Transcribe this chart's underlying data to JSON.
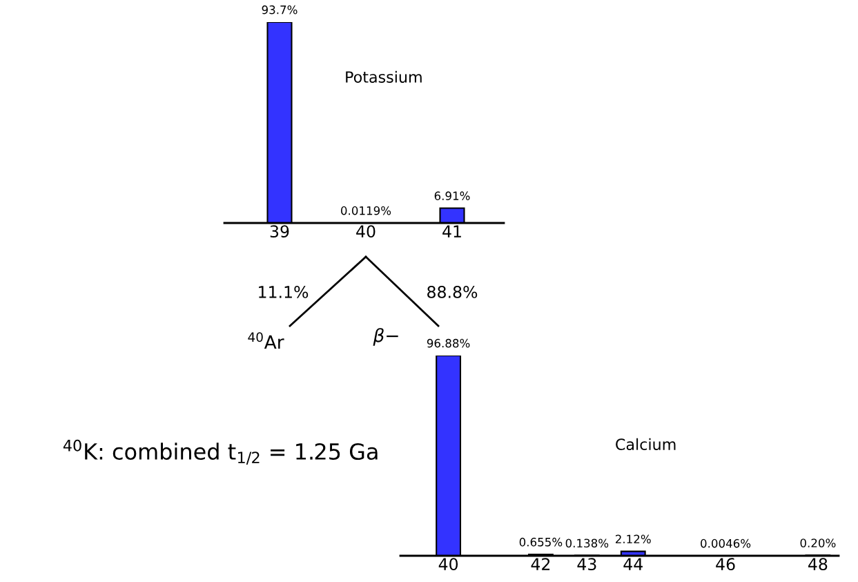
{
  "chart_data": [
    {
      "type": "bar",
      "title": "Potassium",
      "x": [
        39,
        40,
        41
      ],
      "xlim": [
        38.36,
        41.6
      ],
      "xticks": [
        39,
        40,
        41
      ],
      "tick_labels": "x",
      "color": "#3333ff",
      "values": [
        93.7,
        0.0119,
        6.91
      ],
      "value_labels": [
        "93.7%",
        "0.0119%",
        "6.91%"
      ],
      "annotations": [
        "11.1%",
        "88.8%",
        "β−",
        "$^{40}$Ar",
        "$^{40}$K: combined t$_{1/2}$ = 1.25 Ga"
      ]
    },
    {
      "type": "bar",
      "title": "Calcium",
      "x": [
        40,
        42,
        43,
        44,
        46,
        48
      ],
      "xlim": [
        38.96,
        48.45
      ],
      "xticks": [
        40,
        42,
        43,
        44,
        46,
        48
      ],
      "tick_labels": "x",
      "color": "#3333ff",
      "values": [
        96.88,
        0.655,
        0.138,
        2.12,
        0.0046,
        0.2
      ],
      "value_labels": [
        "96.88%",
        "0.655%",
        "0.138%",
        "2.12%",
        "0.0046%",
        "0.20%"
      ]
    }
  ]
}
